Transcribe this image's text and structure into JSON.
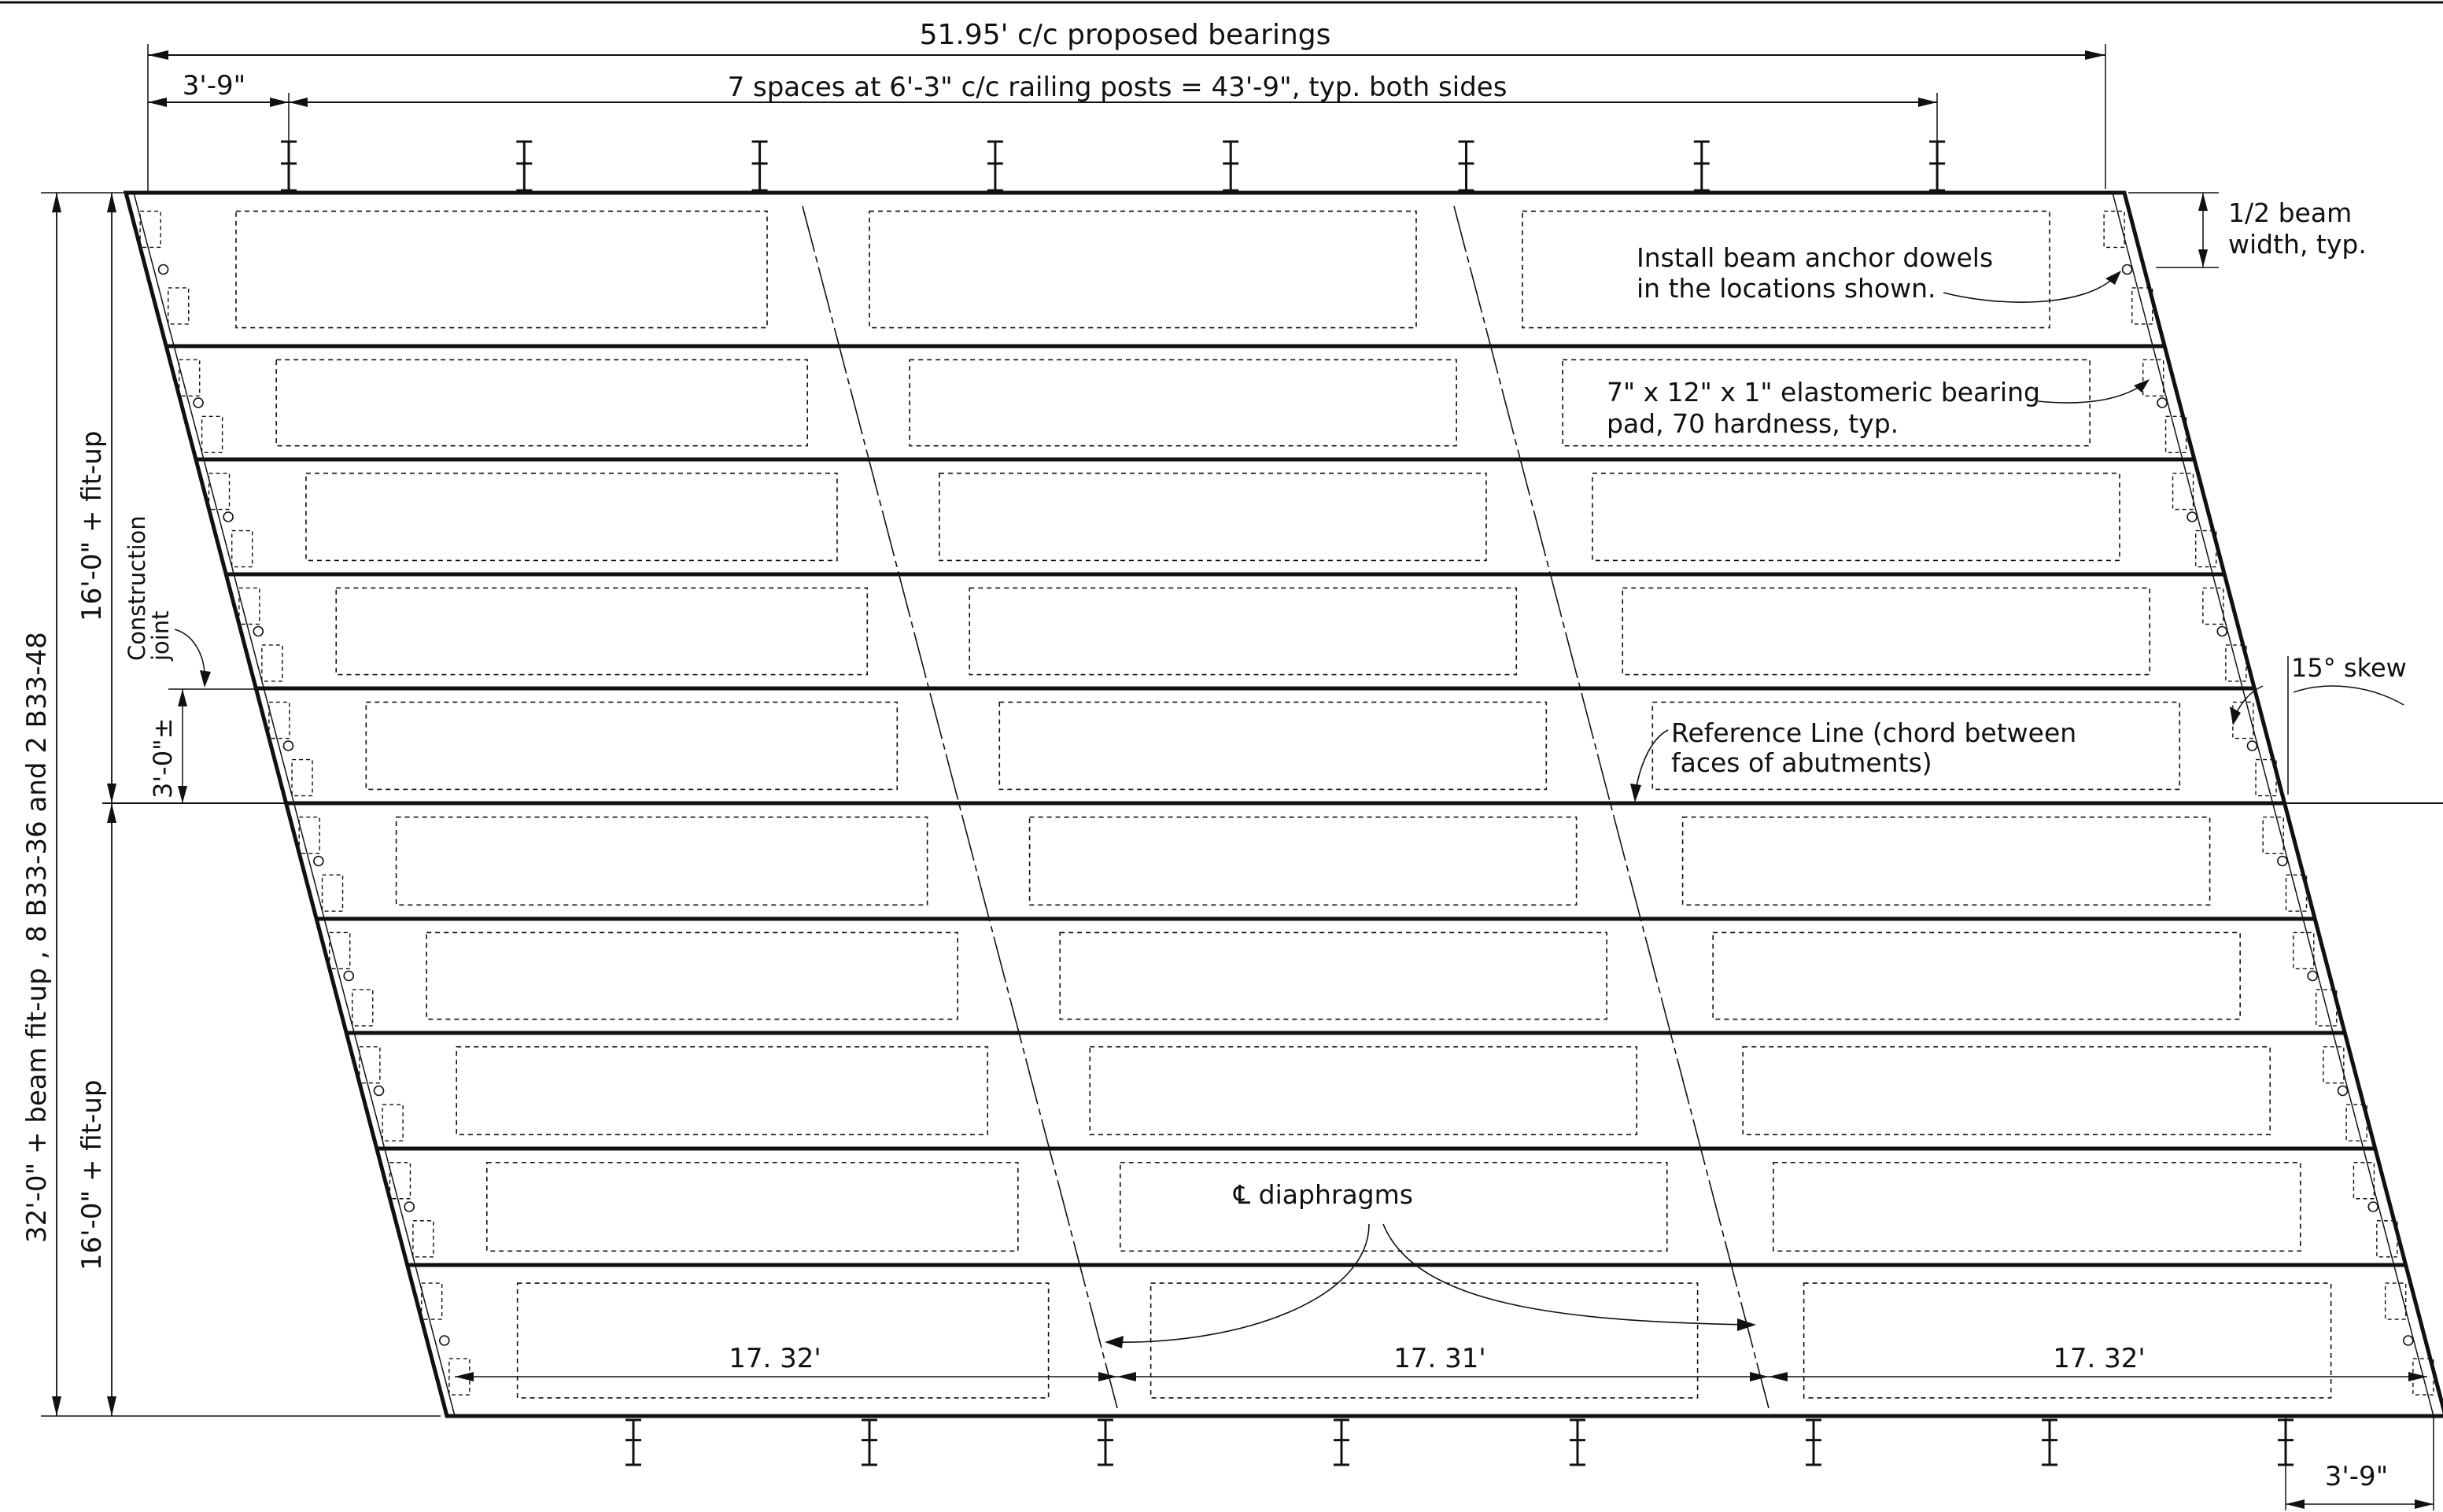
{
  "dimensions": {
    "bearings": "51.95'  c/c  proposed  bearings",
    "end_offset_top": "3'-9\"",
    "posts": "7  spaces  at  6'-3\"  c/c  railing  posts  =   43'-9\",  typ.  both  sides",
    "end_offset_bottom": "3'-9\"",
    "half_beam": [
      "1/2  beam",
      "width,  typ."
    ],
    "skew": "15° skew",
    "seg_left": "17. 32'",
    "seg_mid": "17. 31'",
    "seg_right": "17. 32'",
    "overall_width": "32'-0\"  +  beam  fit-up ,   8  B33-36  and  2  B33-48",
    "upper_half": "16'-0\"  +  fit-up",
    "lower_half": "16'-0\" +  fit-up",
    "joint_offset": "3'-0\"±"
  },
  "notes": {
    "anchor_dowels": [
      "Install  beam  anchor  dowels",
      "in  the  locations  shown."
    ],
    "bearing_pad": [
      "7\" x 12\" x 1\"  elastomeric  bearing",
      "pad,  70  hardness,  typ."
    ],
    "reference_line": [
      "Reference  Line  (chord  between",
      "faces  of  abutments)"
    ],
    "construction_joint": [
      "Construction",
      "joint"
    ],
    "diaphragms": "℄  diaphragms"
  },
  "structure": {
    "beam_count": 10,
    "railing_posts_per_side": 8,
    "diaphragm_lines": 2,
    "skew_degrees": 15
  }
}
